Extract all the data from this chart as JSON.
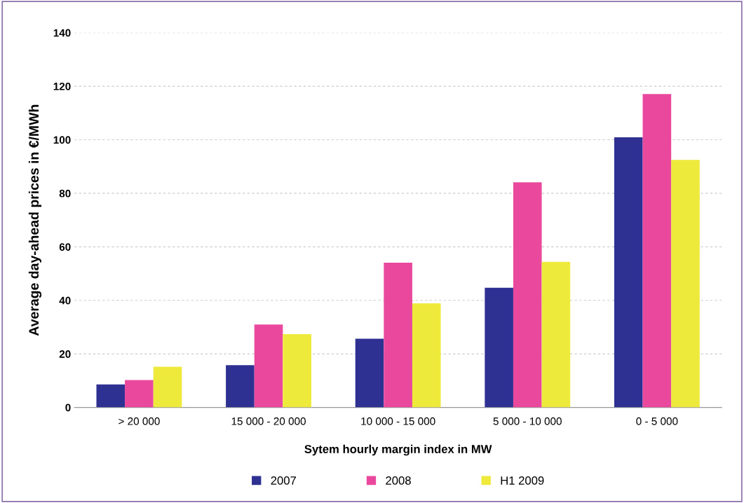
{
  "chart_data": {
    "type": "bar",
    "xlabel": "Sytem hourly margin index in MW",
    "ylabel": "Average day-ahead prices in €/MWh",
    "categories": [
      "> 20 000",
      "15 000 - 20 000",
      "10 000 - 15 000",
      "5 000 - 10 000",
      "0 - 5 000"
    ],
    "series": [
      {
        "name": "2007",
        "color": "#2e3192",
        "values": [
          8.6,
          15.8,
          25.7,
          44.7,
          100.9
        ]
      },
      {
        "name": "2008",
        "color": "#e9489c",
        "values": [
          10.2,
          31,
          54.1,
          84.1,
          117.1
        ]
      },
      {
        "name": "H1 2009",
        "color": "#eeea3c",
        "values": [
          15.2,
          27.4,
          38.9,
          54.4,
          92.5
        ]
      }
    ],
    "ylim": [
      0,
      140
    ],
    "yticks": [
      0,
      20,
      40,
      60,
      80,
      100,
      120,
      140
    ],
    "grid": "y",
    "legend": "bottom"
  }
}
